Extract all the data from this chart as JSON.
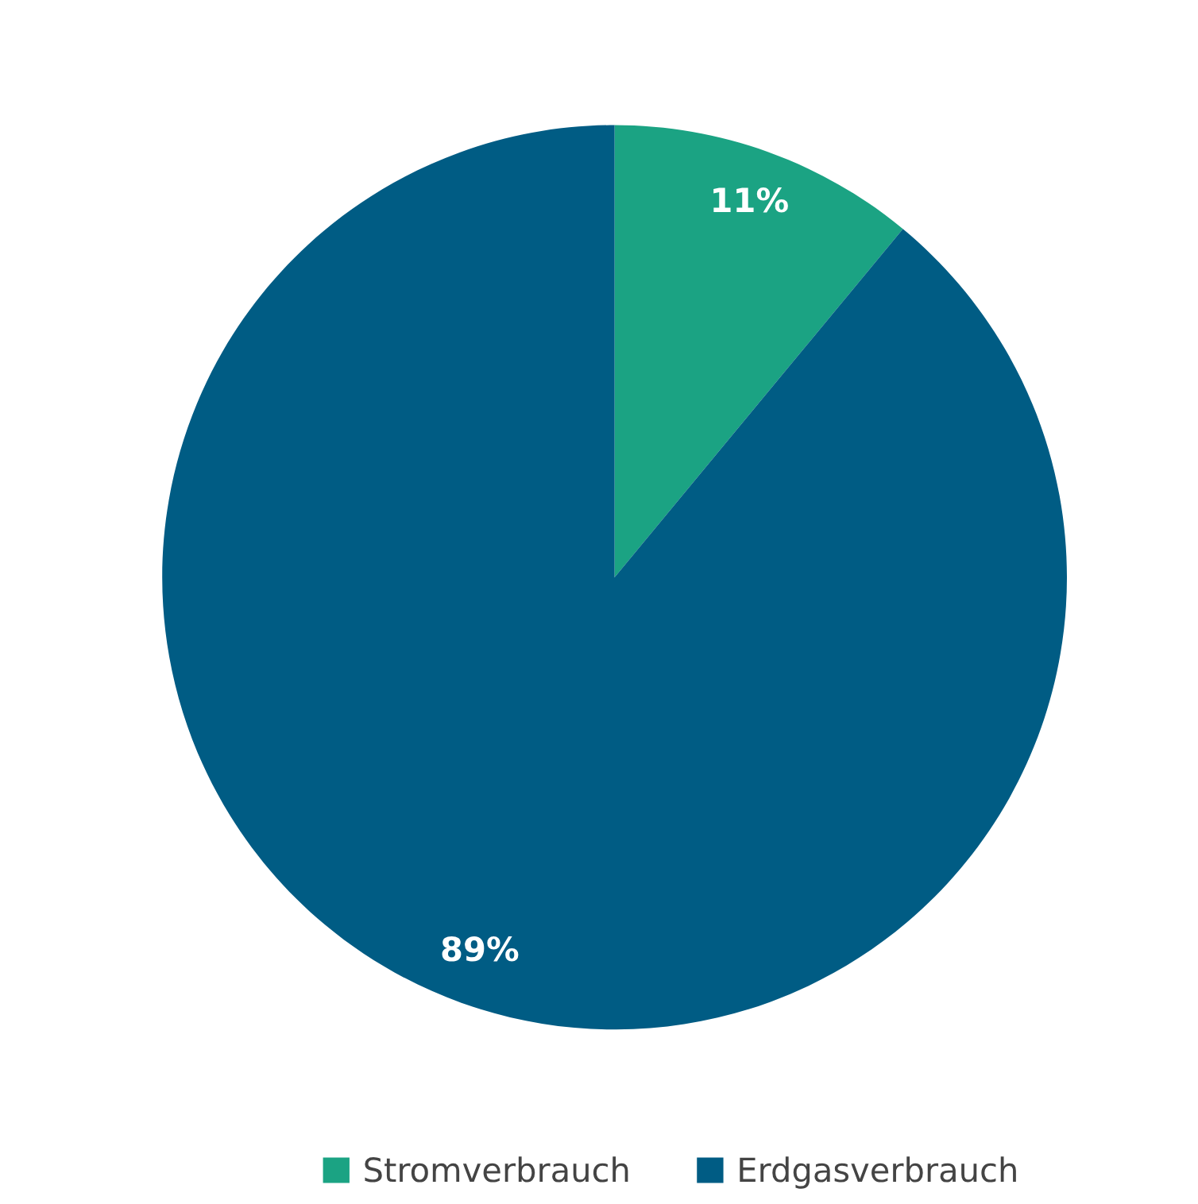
{
  "chart_data": {
    "type": "pie",
    "categories": [
      "Stromverbrauch",
      "Erdgasverbrauch"
    ],
    "values": [
      11,
      89
    ],
    "colors": [
      "#1ba383",
      "#005c84"
    ],
    "value_labels": [
      "11%",
      "89%"
    ],
    "legend": "bottom"
  }
}
